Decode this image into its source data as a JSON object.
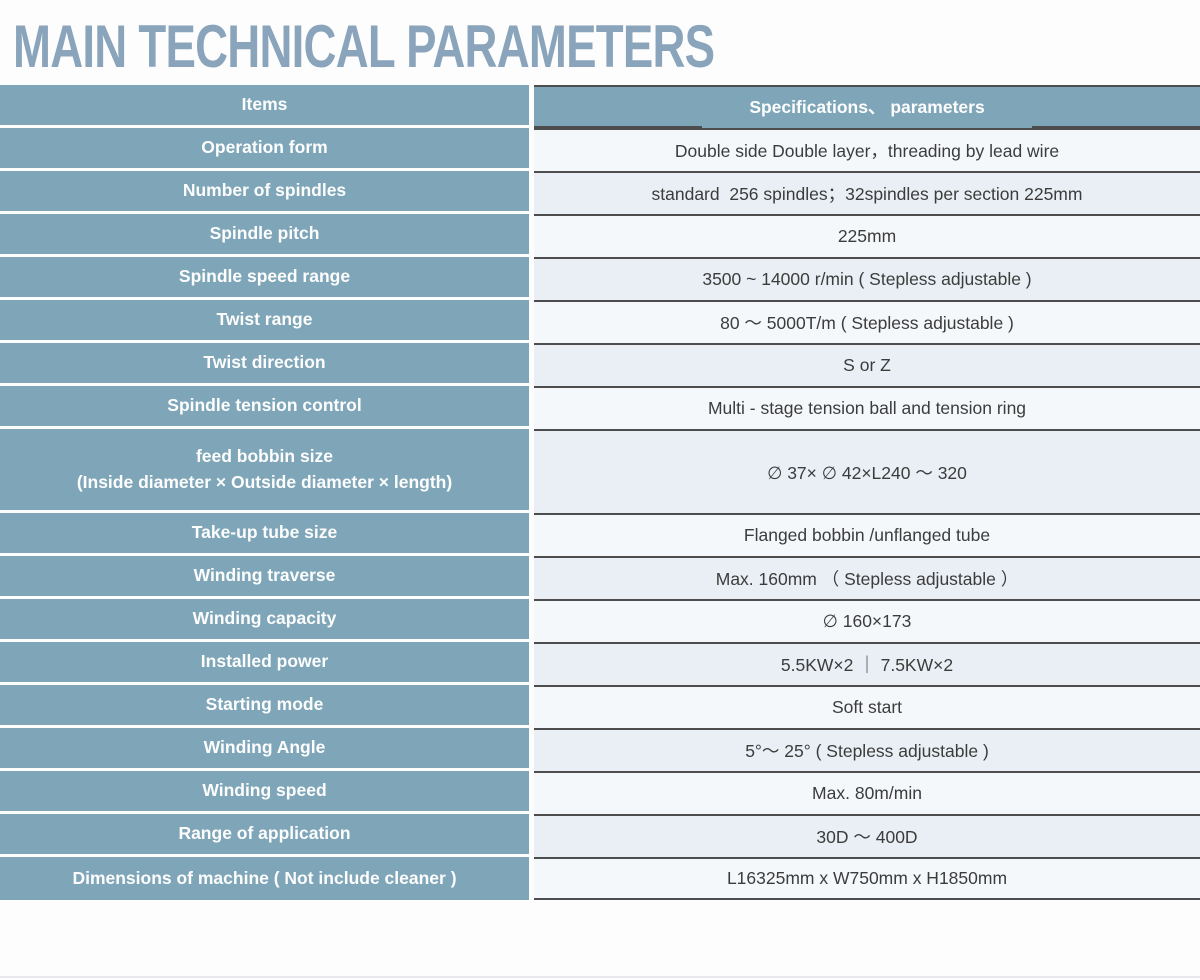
{
  "title": "MAIN TECHNICAL PARAMETERS",
  "table": {
    "header": {
      "items_label": "Items",
      "specs_label": "Specifications、 parameters"
    },
    "rows": [
      {
        "label": "Operation form",
        "value": "Double side Double layer，threading by lead wire"
      },
      {
        "label": "Number of spindles",
        "value": "standard  256 spindles；32spindles per section 225mm"
      },
      {
        "label": "Spindle pitch",
        "value": "225mm"
      },
      {
        "label": "Spindle speed range",
        "value": "3500 ~ 14000 r/min ( Stepless adjustable )"
      },
      {
        "label": "Twist range",
        "value": "80 ～ 5000T/m ( Stepless adjustable )"
      },
      {
        "label": "Twist direction",
        "value": "S or Z"
      },
      {
        "label": "Spindle tension control",
        "value": "Multi - stage tension ball and tension ring"
      },
      {
        "label": "feed bobbin size",
        "label_line2": "(Inside diameter × Outside diameter × length)",
        "value": "∅ 37× ∅ 42×L240 ～ 320"
      },
      {
        "label": "Take-up tube size",
        "value": "Flanged bobbin /unflanged tube"
      },
      {
        "label": "Winding traverse",
        "value": "Max. 160mm （ Stepless adjustable ）"
      },
      {
        "label": "Winding capacity",
        "value": "∅ 160×173"
      },
      {
        "label": "Installed power",
        "value": "5.5KW×2 ｜ 7.5KW×2"
      },
      {
        "label": "Starting mode",
        "value": "Soft start"
      },
      {
        "label": "Winding Angle",
        "value": "5°～ 25° ( Stepless adjustable )"
      },
      {
        "label": "Winding speed",
        "value": "Max. 80m/min"
      },
      {
        "label": "Range of application",
        "value": "30D ～ 400D"
      },
      {
        "label": "Dimensions of machine ( Not include cleaner )",
        "value": "L16325mm x W750mm x H1850mm"
      }
    ]
  },
  "colors": {
    "accent_blue": "#7ea6b8",
    "title_blue": "#8aa5bb",
    "row_light": "#f5f8fb",
    "row_shaded": "#e9eff4",
    "border_dark": "#4d4d4d",
    "value_text": "#3c3c3c"
  }
}
